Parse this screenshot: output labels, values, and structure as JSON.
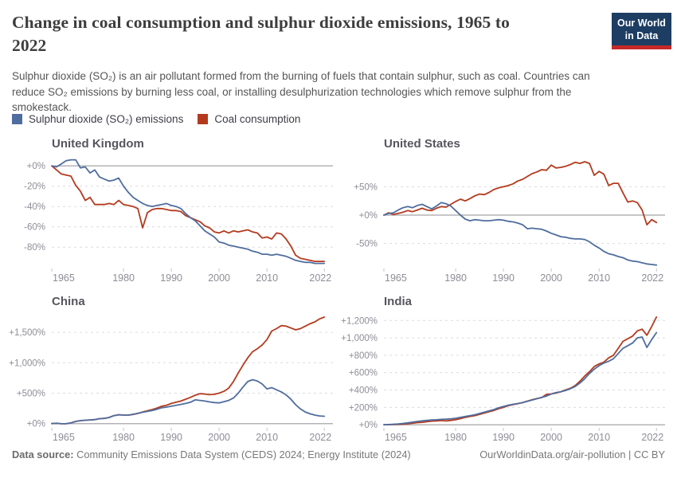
{
  "header": {
    "title_lines": [
      "Change in coal consumption and sulphur dioxide emissions, 1965 to",
      "2022"
    ],
    "subtitle": "Sulphur dioxide (SO₂) is an air pollutant formed from the burning of fuels that contain sulphur, such as coal. Countries can reduce SO₂ emissions by burning less coal, or installing desulphurization technologies which remove sulphur from the smokestack.",
    "logo": {
      "line1": "Our World",
      "line2": "in Data",
      "bg_color": "#1d3d63",
      "underline_color": "#c52929"
    }
  },
  "legend": {
    "items": [
      {
        "label": "Sulphur dioxide (SO₂) emissions",
        "key": "so2",
        "color": "#4f6d9e"
      },
      {
        "label": "Coal consumption",
        "key": "coal",
        "color": "#b43a1e"
      }
    ]
  },
  "colors": {
    "zero_line": "#b3b3b6",
    "gridline": "#dcdcde",
    "axis_tick": "#c4c4c8"
  },
  "chart_data": [
    {
      "type": "line",
      "title": "United Kingdom",
      "x": {
        "start_year": 1965,
        "end_year": 2022,
        "tick_years": [
          1965,
          1980,
          1990,
          2000,
          2010,
          2022
        ]
      },
      "y": {
        "domain": [
          -101,
          8
        ],
        "ticks": [
          0,
          -20,
          -40,
          -60,
          -80
        ],
        "tick_labels": [
          "+0%",
          "-20%",
          "-40%",
          "-60%",
          "-80%"
        ]
      },
      "series": [
        {
          "name": "Sulphur dioxide (SO₂) emissions",
          "key": "so2",
          "color": "#4f6d9e",
          "values": [
            0,
            -1,
            2,
            5,
            6,
            6,
            -2,
            -1,
            -7,
            -4,
            -11,
            -13,
            -15,
            -14,
            -12,
            -20,
            -26,
            -31,
            -34,
            -37,
            -39,
            -40,
            -39,
            -38,
            -37,
            -39,
            -40,
            -42,
            -47,
            -51,
            -54,
            -59,
            -64,
            -67,
            -70,
            -75,
            -76,
            -78,
            -79,
            -80,
            -81,
            -82,
            -84,
            -85,
            -87,
            -87,
            -88,
            -87,
            -88,
            -89,
            -91,
            -93,
            -94,
            -95,
            -95,
            -96,
            -96,
            -96
          ]
        },
        {
          "name": "Coal consumption",
          "key": "coal",
          "color": "#b43a1e",
          "values": [
            0,
            -4,
            -8,
            -9,
            -10,
            -19,
            -25,
            -34,
            -31,
            -38,
            -38,
            -38,
            -37,
            -38,
            -34,
            -38,
            -39,
            -40,
            -42,
            -61,
            -46,
            -43,
            -42,
            -42,
            -43,
            -44,
            -44,
            -45,
            -49,
            -51,
            -53,
            -55,
            -59,
            -61,
            -65,
            -66,
            -64,
            -66,
            -64,
            -65,
            -64,
            -63,
            -65,
            -66,
            -71,
            -70,
            -72,
            -66,
            -67,
            -72,
            -79,
            -88,
            -91,
            -92,
            -93,
            -94,
            -94,
            -94
          ]
        }
      ]
    },
    {
      "type": "line",
      "title": "United States",
      "x": {
        "start_year": 1965,
        "end_year": 2022,
        "tick_years": [
          1965,
          1980,
          1990,
          2000,
          2010,
          2022
        ]
      },
      "y": {
        "domain": [
          -94,
          101
        ],
        "ticks": [
          50,
          0,
          -50
        ],
        "tick_labels": [
          "+50%",
          "+0%",
          "-50%"
        ]
      },
      "series": [
        {
          "name": "Sulphur dioxide (SO₂) emissions",
          "key": "so2",
          "color": "#4f6d9e",
          "values": [
            0,
            3,
            4,
            9,
            13,
            15,
            13,
            17,
            19,
            15,
            11,
            16,
            22,
            20,
            16,
            8,
            0,
            -7,
            -10,
            -8,
            -9,
            -10,
            -10,
            -9,
            -8,
            -9,
            -11,
            -12,
            -14,
            -17,
            -24,
            -23,
            -24,
            -25,
            -28,
            -32,
            -35,
            -38,
            -39,
            -41,
            -42,
            -42,
            -43,
            -47,
            -53,
            -58,
            -64,
            -68,
            -70,
            -73,
            -75,
            -79,
            -81,
            -82,
            -84,
            -86,
            -87,
            -88
          ]
        },
        {
          "name": "Coal consumption",
          "key": "coal",
          "color": "#b43a1e",
          "values": [
            0,
            4,
            1,
            3,
            5,
            8,
            6,
            9,
            12,
            9,
            8,
            12,
            15,
            14,
            19,
            24,
            28,
            25,
            29,
            34,
            37,
            36,
            40,
            45,
            48,
            50,
            52,
            55,
            60,
            63,
            68,
            73,
            76,
            80,
            79,
            88,
            83,
            84,
            86,
            89,
            93,
            91,
            94,
            91,
            70,
            77,
            72,
            52,
            56,
            56,
            39,
            23,
            25,
            22,
            9,
            -17,
            -8,
            -13
          ]
        }
      ]
    },
    {
      "type": "line",
      "title": "China",
      "x": {
        "start_year": 1965,
        "end_year": 2022,
        "tick_years": [
          1965,
          1980,
          1990,
          2000,
          2010,
          2022
        ]
      },
      "y": {
        "domain": [
          -70,
          1815
        ],
        "ticks": [
          1500,
          1000,
          500,
          0
        ],
        "tick_labels": [
          "+1,500%",
          "+1,000%",
          "+500%",
          "+0%"
        ]
      },
      "series": [
        {
          "name": "Sulphur dioxide (SO₂) emissions",
          "key": "so2",
          "color": "#4f6d9e",
          "values": [
            0,
            4,
            -3,
            -2,
            10,
            35,
            48,
            55,
            60,
            65,
            80,
            85,
            100,
            130,
            145,
            140,
            138,
            152,
            168,
            185,
            200,
            215,
            235,
            260,
            270,
            285,
            300,
            315,
            330,
            350,
            390,
            380,
            370,
            355,
            345,
            340,
            360,
            380,
            420,
            500,
            600,
            690,
            720,
            700,
            650,
            570,
            590,
            555,
            520,
            470,
            400,
            310,
            240,
            190,
            160,
            140,
            125,
            120
          ]
        },
        {
          "name": "Coal consumption",
          "key": "coal",
          "color": "#b43a1e",
          "values": [
            0,
            4,
            -3,
            -2,
            10,
            35,
            48,
            55,
            60,
            65,
            80,
            85,
            100,
            130,
            145,
            140,
            138,
            150,
            165,
            190,
            210,
            230,
            255,
            285,
            300,
            330,
            350,
            370,
            400,
            430,
            465,
            490,
            485,
            475,
            480,
            500,
            530,
            580,
            690,
            830,
            960,
            1080,
            1180,
            1230,
            1290,
            1380,
            1520,
            1560,
            1610,
            1600,
            1570,
            1540,
            1560,
            1600,
            1640,
            1670,
            1720,
            1750
          ]
        }
      ]
    },
    {
      "type": "line",
      "title": "India",
      "x": {
        "start_year": 1965,
        "end_year": 2022,
        "tick_years": [
          1965,
          1980,
          1990,
          2000,
          2010,
          2022
        ]
      },
      "y": {
        "domain": [
          -35,
          1285
        ],
        "ticks": [
          1200,
          1000,
          800,
          600,
          400,
          200,
          0
        ],
        "tick_labels": [
          "+1,200%",
          "+1,000%",
          "+800%",
          "+600%",
          "+400%",
          "+200%",
          "+0%"
        ]
      },
      "series": [
        {
          "name": "Sulphur dioxide (SO₂) emissions",
          "key": "so2",
          "color": "#4f6d9e",
          "values": [
            0,
            3,
            6,
            10,
            15,
            22,
            30,
            38,
            45,
            50,
            55,
            58,
            62,
            65,
            68,
            75,
            85,
            95,
            105,
            115,
            130,
            145,
            160,
            175,
            195,
            210,
            225,
            235,
            245,
            255,
            270,
            285,
            300,
            315,
            330,
            355,
            370,
            380,
            395,
            415,
            440,
            480,
            530,
            590,
            640,
            680,
            710,
            730,
            760,
            820,
            880,
            910,
            940,
            1000,
            1010,
            890,
            980,
            1060
          ]
        },
        {
          "name": "Coal consumption",
          "key": "coal",
          "color": "#b43a1e",
          "values": [
            0,
            2,
            3,
            5,
            8,
            12,
            18,
            25,
            28,
            35,
            42,
            45,
            48,
            45,
            50,
            58,
            70,
            85,
            95,
            105,
            120,
            135,
            150,
            165,
            185,
            200,
            220,
            232,
            242,
            255,
            272,
            288,
            302,
            312,
            350,
            355,
            365,
            380,
            400,
            420,
            450,
            500,
            560,
            610,
            670,
            700,
            720,
            770,
            800,
            880,
            960,
            990,
            1020,
            1080,
            1100,
            1030,
            1130,
            1240
          ]
        }
      ]
    }
  ],
  "footer": {
    "source_label": "Data source:",
    "source_text": " Community Emissions Data System (CEDS) 2024; Energy Institute (2024)",
    "link_text": "OurWorldinData.org/air-pollution | CC BY"
  }
}
